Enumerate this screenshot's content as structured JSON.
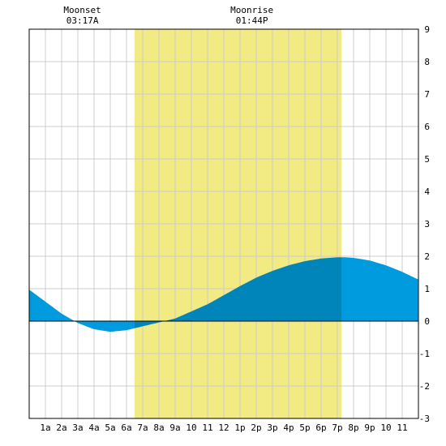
{
  "chart_data": {
    "type": "area",
    "title": "",
    "xlabel": "",
    "ylabel": "",
    "x_unit": "hour of day",
    "xlim": [
      0,
      24
    ],
    "ylim": [
      -3,
      9
    ],
    "grid": true,
    "x_tick_labels": [
      {
        "hour": 1,
        "label": "1a"
      },
      {
        "hour": 2,
        "label": "2a"
      },
      {
        "hour": 3,
        "label": "3a"
      },
      {
        "hour": 4,
        "label": "4a"
      },
      {
        "hour": 5,
        "label": "5a"
      },
      {
        "hour": 6,
        "label": "6a"
      },
      {
        "hour": 7,
        "label": "7a"
      },
      {
        "hour": 8,
        "label": "8a"
      },
      {
        "hour": 9,
        "label": "9a"
      },
      {
        "hour": 10,
        "label": "10"
      },
      {
        "hour": 11,
        "label": "11"
      },
      {
        "hour": 12,
        "label": "12"
      },
      {
        "hour": 13,
        "label": "1p"
      },
      {
        "hour": 14,
        "label": "2p"
      },
      {
        "hour": 15,
        "label": "3p"
      },
      {
        "hour": 16,
        "label": "4p"
      },
      {
        "hour": 17,
        "label": "5p"
      },
      {
        "hour": 18,
        "label": "6p"
      },
      {
        "hour": 19,
        "label": "7p"
      },
      {
        "hour": 20,
        "label": "8p"
      },
      {
        "hour": 21,
        "label": "9p"
      },
      {
        "hour": 22,
        "label": "10"
      },
      {
        "hour": 23,
        "label": "11"
      }
    ],
    "y_ticks": [
      -3,
      -2,
      -1,
      0,
      1,
      2,
      3,
      4,
      5,
      6,
      7,
      8,
      9
    ],
    "daylight": {
      "start_hour": 6.5,
      "end_hour": 19.25,
      "color": "#f2ea82"
    },
    "moon_events": [
      {
        "label": "Moonset",
        "time": "03:17A",
        "hour": 3.28
      },
      {
        "label": "Moonrise",
        "time": "01:44P",
        "hour": 13.73
      }
    ],
    "series": [
      {
        "points": [
          [
            0,
            0.97
          ],
          [
            1,
            0.6
          ],
          [
            2,
            0.23
          ],
          [
            3,
            -0.06
          ],
          [
            4,
            -0.25
          ],
          [
            5,
            -0.33
          ],
          [
            6,
            -0.28
          ],
          [
            7,
            -0.16
          ],
          [
            8,
            -0.04
          ],
          [
            9,
            0.08
          ],
          [
            10,
            0.3
          ],
          [
            11,
            0.52
          ],
          [
            12,
            0.8
          ],
          [
            13,
            1.08
          ],
          [
            14,
            1.34
          ],
          [
            15,
            1.55
          ],
          [
            16,
            1.72
          ],
          [
            17,
            1.85
          ],
          [
            18,
            1.93
          ],
          [
            19,
            1.97
          ],
          [
            19.5,
            1.97
          ],
          [
            20,
            1.95
          ],
          [
            21,
            1.87
          ],
          [
            22,
            1.72
          ],
          [
            23,
            1.52
          ],
          [
            24,
            1.28
          ]
        ]
      }
    ],
    "colors": {
      "day_fill": "#0085bb",
      "night_fill": "#009bde",
      "grid": "#cccccc",
      "frame": "#000000"
    }
  }
}
